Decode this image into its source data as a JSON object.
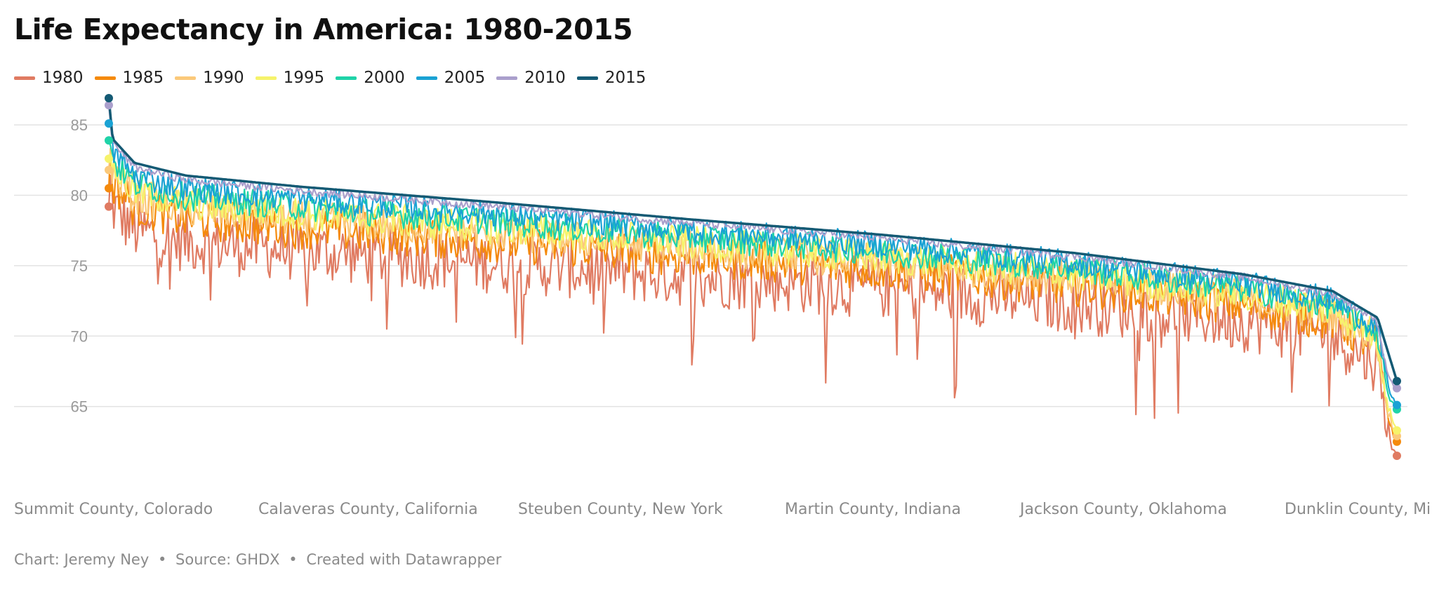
{
  "title": "Life Expectancy in America: 1980-2015",
  "footer": {
    "chart_credit": "Chart: Jeremy Ney",
    "separator": "•",
    "source": "Source: GHDX",
    "tool": "Created with Datawrapper"
  },
  "chart_data": {
    "type": "line",
    "title": "Life Expectancy in America: 1980-2015",
    "xlabel": "",
    "ylabel": "",
    "ylim": [
      61,
      87
    ],
    "yticks": [
      65,
      70,
      75,
      80,
      85
    ],
    "grid": true,
    "legend_position": "top-left",
    "x_tick_labels": [
      "Summit County, Colorado",
      "Calaveras County, California",
      "Steuben County, New York",
      "Martin County, Indiana",
      "Jackson County, Oklahoma",
      "Dunklin County, Mi"
    ],
    "n_counties": 3142,
    "series": [
      {
        "name": "1980",
        "color": "#e07b62",
        "first": 79.2,
        "last": 61.5,
        "mean_offset": -4.8,
        "spread": 2.2
      },
      {
        "name": "1985",
        "color": "#f58a0b",
        "first": 80.5,
        "last": 62.5,
        "mean_offset": -3.1,
        "spread": 1.5
      },
      {
        "name": "1990",
        "color": "#fbc97a",
        "first": 81.8,
        "last": 62.9,
        "mean_offset": -2.4,
        "spread": 1.3
      },
      {
        "name": "1995",
        "color": "#f6f36b",
        "first": 82.6,
        "last": 63.3,
        "mean_offset": -2.0,
        "spread": 1.2
      },
      {
        "name": "2000",
        "color": "#1fd3a8",
        "first": 83.9,
        "last": 64.8,
        "mean_offset": -1.5,
        "spread": 1.0
      },
      {
        "name": "2005",
        "color": "#1aa2d4",
        "first": 85.1,
        "last": 65.1,
        "mean_offset": -0.9,
        "spread": 0.9
      },
      {
        "name": "2010",
        "color": "#aa9fcc",
        "first": 86.4,
        "last": 66.3,
        "mean_offset": -0.3,
        "spread": 0.3
      },
      {
        "name": "2015",
        "color": "#145a74",
        "first": 86.9,
        "last": 66.8,
        "mean_offset": 0.0,
        "spread": 0.0
      }
    ],
    "baseline_2015_profile": [
      {
        "rank": 0.0,
        "value": 86.9
      },
      {
        "rank": 0.003,
        "value": 84.0
      },
      {
        "rank": 0.02,
        "value": 82.3
      },
      {
        "rank": 0.06,
        "value": 81.4
      },
      {
        "rank": 0.15,
        "value": 80.6
      },
      {
        "rank": 0.3,
        "value": 79.5
      },
      {
        "rank": 0.45,
        "value": 78.3
      },
      {
        "rank": 0.6,
        "value": 77.2
      },
      {
        "rank": 0.75,
        "value": 75.9
      },
      {
        "rank": 0.88,
        "value": 74.4
      },
      {
        "rank": 0.95,
        "value": 73.2
      },
      {
        "rank": 0.985,
        "value": 71.3
      },
      {
        "rank": 1.0,
        "value": 66.8
      }
    ]
  }
}
